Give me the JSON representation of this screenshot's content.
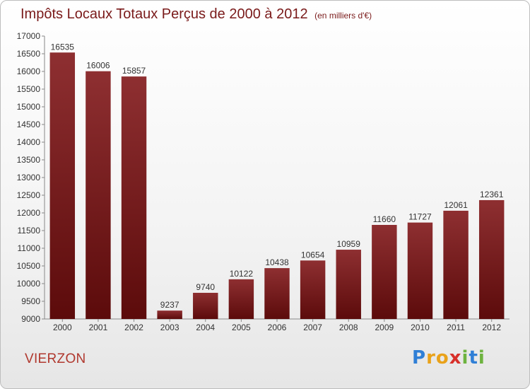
{
  "header": {
    "title": "Impôts Locaux Totaux Perçus de 2000 à 2012",
    "unit": "(en milliers d'€)"
  },
  "footer": {
    "city": "VIERZON",
    "logo_letters": [
      "P",
      "r",
      "o",
      "x",
      "i",
      "t",
      "i"
    ]
  },
  "chart_data": {
    "type": "bar",
    "title": "Impôts Locaux Totaux Perçus de 2000 à 2012",
    "xlabel": "",
    "ylabel": "",
    "categories": [
      "2000",
      "2001",
      "2002",
      "2003",
      "2004",
      "2005",
      "2006",
      "2007",
      "2008",
      "2009",
      "2010",
      "2011",
      "2012"
    ],
    "values": [
      16535,
      16006,
      15857,
      9237,
      9740,
      10122,
      10438,
      10654,
      10959,
      11660,
      11727,
      12061,
      12361
    ],
    "ylim": [
      9000,
      17000
    ],
    "yticks": [
      9000,
      9500,
      10000,
      10500,
      11000,
      11500,
      12000,
      12500,
      13000,
      13500,
      14000,
      14500,
      15000,
      15500,
      16000,
      16500,
      17000
    ],
    "grid": false,
    "legend": "none",
    "bar_color": "#7a1a1a"
  }
}
